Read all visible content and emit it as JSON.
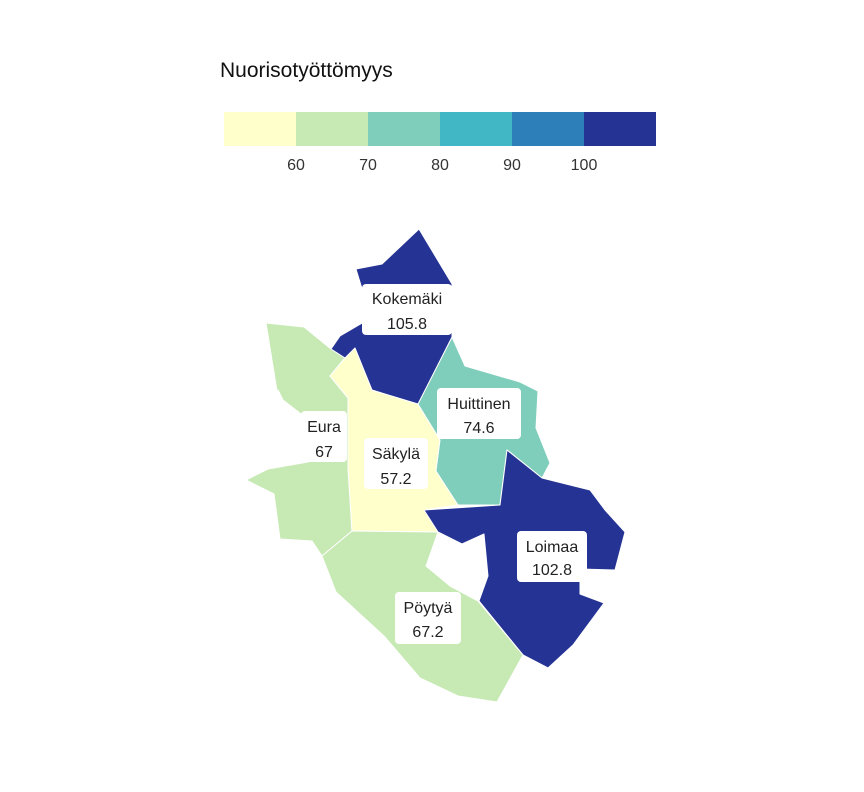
{
  "legend": {
    "title": "Nuorisotyöttömyys",
    "bins": [
      {
        "color": "#ffffcc"
      },
      {
        "color": "#c7e9b4"
      },
      {
        "color": "#7fcdbb"
      },
      {
        "color": "#41b6c4"
      },
      {
        "color": "#2c7fb8"
      },
      {
        "color": "#253494"
      }
    ],
    "ticks": [
      "60",
      "70",
      "80",
      "90",
      "100"
    ]
  },
  "regions": [
    {
      "name": "Kokemäki",
      "value": "105.8",
      "color": "#253494"
    },
    {
      "name": "Eura",
      "value": "67",
      "color": "#c7e9b4"
    },
    {
      "name": "Säkylä",
      "value": "57.2",
      "color": "#ffffcc"
    },
    {
      "name": "Huittinen",
      "value": "74.6",
      "color": "#7fcdbb"
    },
    {
      "name": "Loimaa",
      "value": "102.8",
      "color": "#253494"
    },
    {
      "name": "Pöytyä",
      "value": "67.2",
      "color": "#c7e9b4"
    }
  ]
}
